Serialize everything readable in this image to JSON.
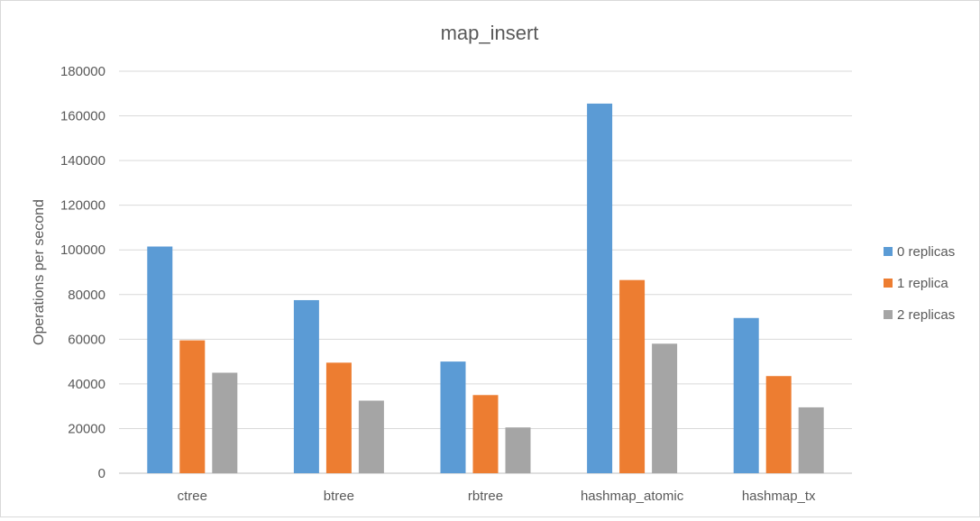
{
  "chart_data": {
    "type": "bar",
    "title": "map_insert",
    "xlabel": "",
    "ylabel": "Operations per second",
    "ylim": [
      0,
      180000
    ],
    "yticks": [
      0,
      20000,
      40000,
      60000,
      80000,
      100000,
      120000,
      140000,
      160000,
      180000
    ],
    "grid": true,
    "legend_position": "right",
    "categories": [
      "ctree",
      "btree",
      "rbtree",
      "hashmap_atomic",
      "hashmap_tx"
    ],
    "series": [
      {
        "name": "0 replicas",
        "color": "#5b9bd5",
        "values": [
          101500,
          77500,
          50000,
          165500,
          69500
        ]
      },
      {
        "name": "1 replica",
        "color": "#ed7d31",
        "values": [
          59500,
          49500,
          35000,
          86500,
          43500
        ]
      },
      {
        "name": "2 replicas",
        "color": "#a5a5a5",
        "values": [
          45000,
          32500,
          20500,
          58000,
          29500
        ]
      }
    ]
  }
}
